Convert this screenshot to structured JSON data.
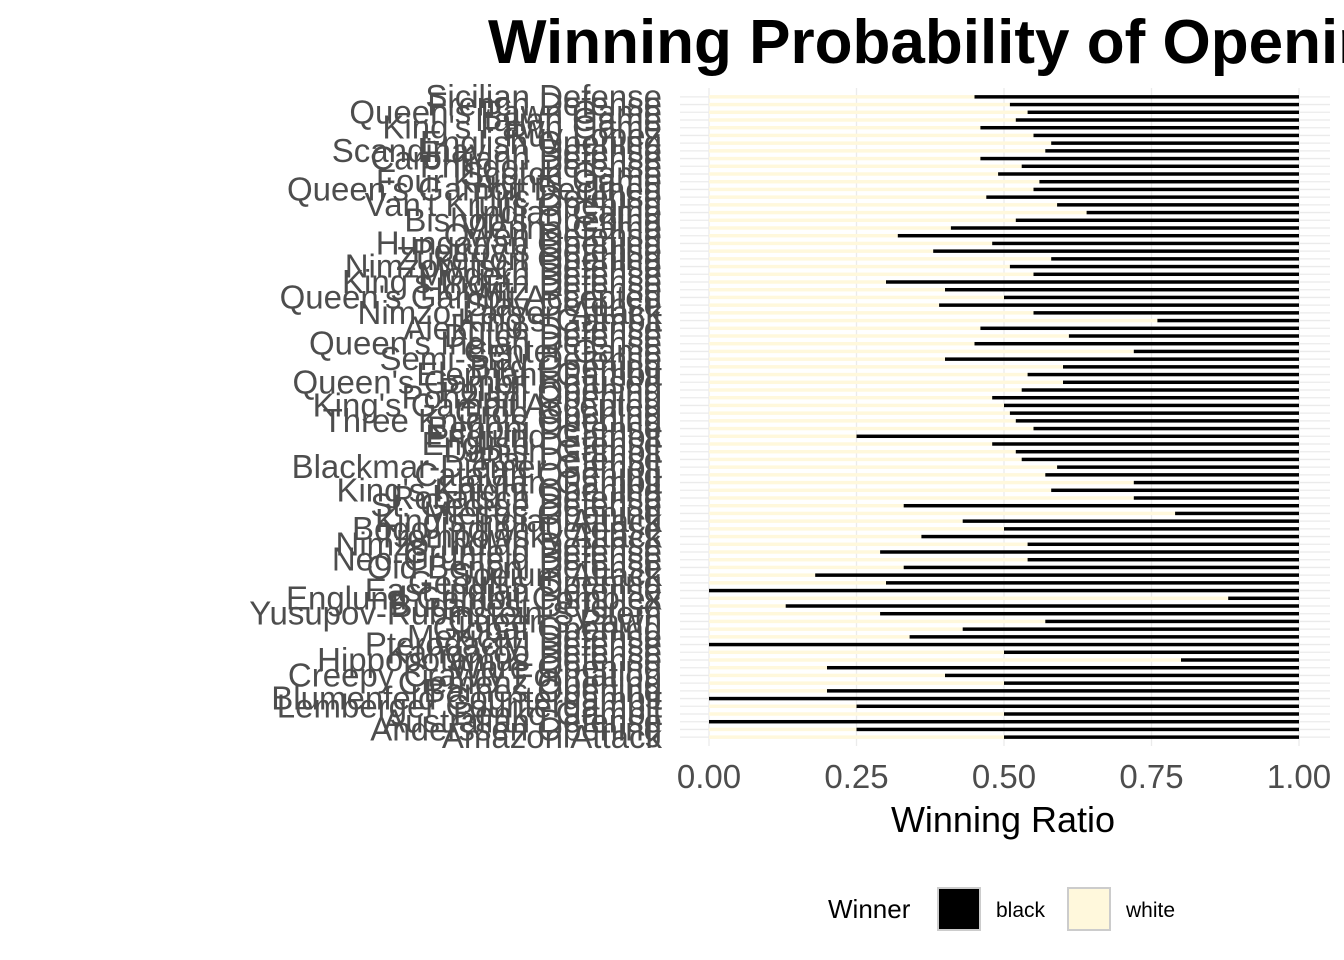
{
  "chart_data": {
    "type": "bar",
    "orientation": "horizontal",
    "stacked": true,
    "title": "Winning Probability of Openings",
    "xlabel": "Winning Ratio",
    "ylabel": "",
    "xlim": [
      0,
      1
    ],
    "x_ticks": [
      "0.00",
      "0.25",
      "0.50",
      "0.75",
      "1.00"
    ],
    "grid": true,
    "legend": {
      "title": "Winner",
      "position": "bottom",
      "entries": [
        "black",
        "white"
      ]
    },
    "colors": {
      "black": "#000000",
      "white": "#fff8dc",
      "grid": "#ebebeb",
      "outline": "#cccccc"
    },
    "categories": [
      "Sicilian Defense",
      "French Defense",
      "Queen's Pawn Game",
      "Italian Game",
      "King's Pawn Game",
      "Ruy Lopez",
      "English Opening",
      "Scandinavian Defense",
      "Caro-Kann Defense",
      "Philidor Defense",
      "Scotch Game",
      "Four Knights Game",
      "Queen's Gambit Declined",
      "Pirc Defense",
      "Van't Kruijs Opening",
      "Indian Game",
      "Bishop's Opening",
      "Vienna Game",
      "Owen Defense",
      "Hungarian Opening",
      "Petrov's Defense",
      "Zukertort Opening",
      "Nimzowitsch Defense",
      "Modern Defense",
      "King's Indian Defense",
      "Horwitz Defense",
      "Queen's Gambit Accepted",
      "Slav Defense",
      "Nimzo-Larsen Attack",
      "King's Gambit",
      "Alekhine Defense",
      "Dutch Defense",
      "Queen's Indian Defense",
      "Center Game",
      "Semi-Slav Defense",
      "Bird Opening",
      "Elephant Gambit",
      "Queen's Gambit Refused",
      "Polish Opening",
      "Ponziani Opening",
      "King's Gambit Accepted",
      "Grob Opening",
      "Three Knights Opening",
      "Benoni Defense",
      "Englund Gambit",
      "English Defense",
      "Danish Gambit",
      "Rat Defense",
      "Blackmar-Diemer Gambit",
      "Catalan Opening",
      "Latvian Gambit",
      "King's Knight Opening",
      "Robatsch Defense",
      "St. George Defense",
      "Mieses Opening",
      "King's Indian Attack",
      "Bogo-Indian Defense",
      "Trompowsky Attack",
      "Nimzo-Indian Defense",
      "Grunfeld Defense",
      "Neo-Grunfeld Defense",
      "Old Benoni Defense",
      "Sodium Attack",
      "Gedult's Opening",
      "East Indian Defense",
      "Englund Gambit Complex",
      "Budapest Defense",
      "Yusupov-Rubinstein System",
      "Queen's Pawn",
      "Global Opening",
      "Mexican Defense",
      "Pterodactyl Defense",
      "Kangaroo Defense",
      "Hippopotamus Defense",
      "Ware Opening",
      "Creepy Crawly Formation",
      "Clemenz Opening",
      "Barnes Opening",
      "Blumenfeld Countergambit",
      "Lemberger Countergambit",
      "Benko Gambit",
      "Australian Defense",
      "Anderssen Opening",
      "Amazon Attack"
    ],
    "white_ratio": [
      0.45,
      0.51,
      0.54,
      0.52,
      0.46,
      0.55,
      0.58,
      0.57,
      0.46,
      0.53,
      0.49,
      0.56,
      0.55,
      0.47,
      0.59,
      0.64,
      0.52,
      0.41,
      0.32,
      0.48,
      0.38,
      0.58,
      0.51,
      0.55,
      0.3,
      0.4,
      0.5,
      0.39,
      0.55,
      0.76,
      0.46,
      0.61,
      0.45,
      0.72,
      0.4,
      0.6,
      0.54,
      0.6,
      0.53,
      0.48,
      0.5,
      0.51,
      0.52,
      0.55,
      0.25,
      0.48,
      0.52,
      0.53,
      0.59,
      0.57,
      0.72,
      0.58,
      0.72,
      0.33,
      0.79,
      0.43,
      0.5,
      0.36,
      0.54,
      0.29,
      0.54,
      0.33,
      0.18,
      0.3,
      0.0,
      0.88,
      0.13,
      0.29,
      0.57,
      0.43,
      0.34,
      0.0,
      0.5,
      0.8,
      0.2,
      0.4,
      0.5,
      0.2,
      0.0,
      0.25,
      0.5,
      0.0,
      0.25,
      0.5
    ]
  }
}
